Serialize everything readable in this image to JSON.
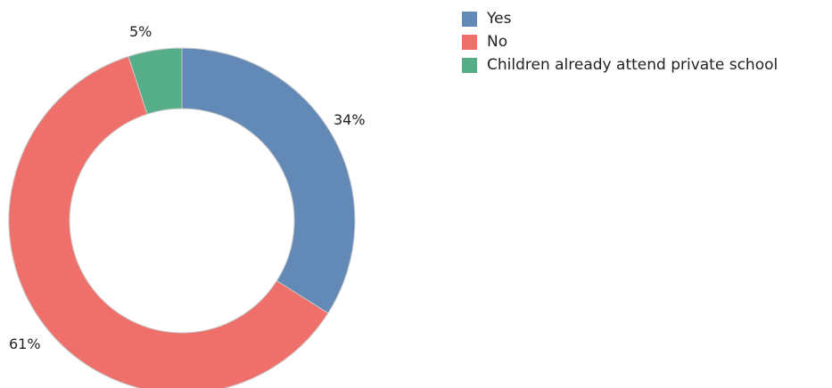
{
  "chart_data": {
    "type": "pie",
    "donut": true,
    "categories": [
      "Yes",
      "No",
      "Children already attend private school"
    ],
    "values": [
      34,
      61,
      5
    ],
    "labels": [
      "34%",
      "61%",
      "5%"
    ],
    "colors": [
      "#6389B6",
      "#EF6F6A",
      "#56AE88"
    ],
    "legend_position": "top-right",
    "title": ""
  }
}
